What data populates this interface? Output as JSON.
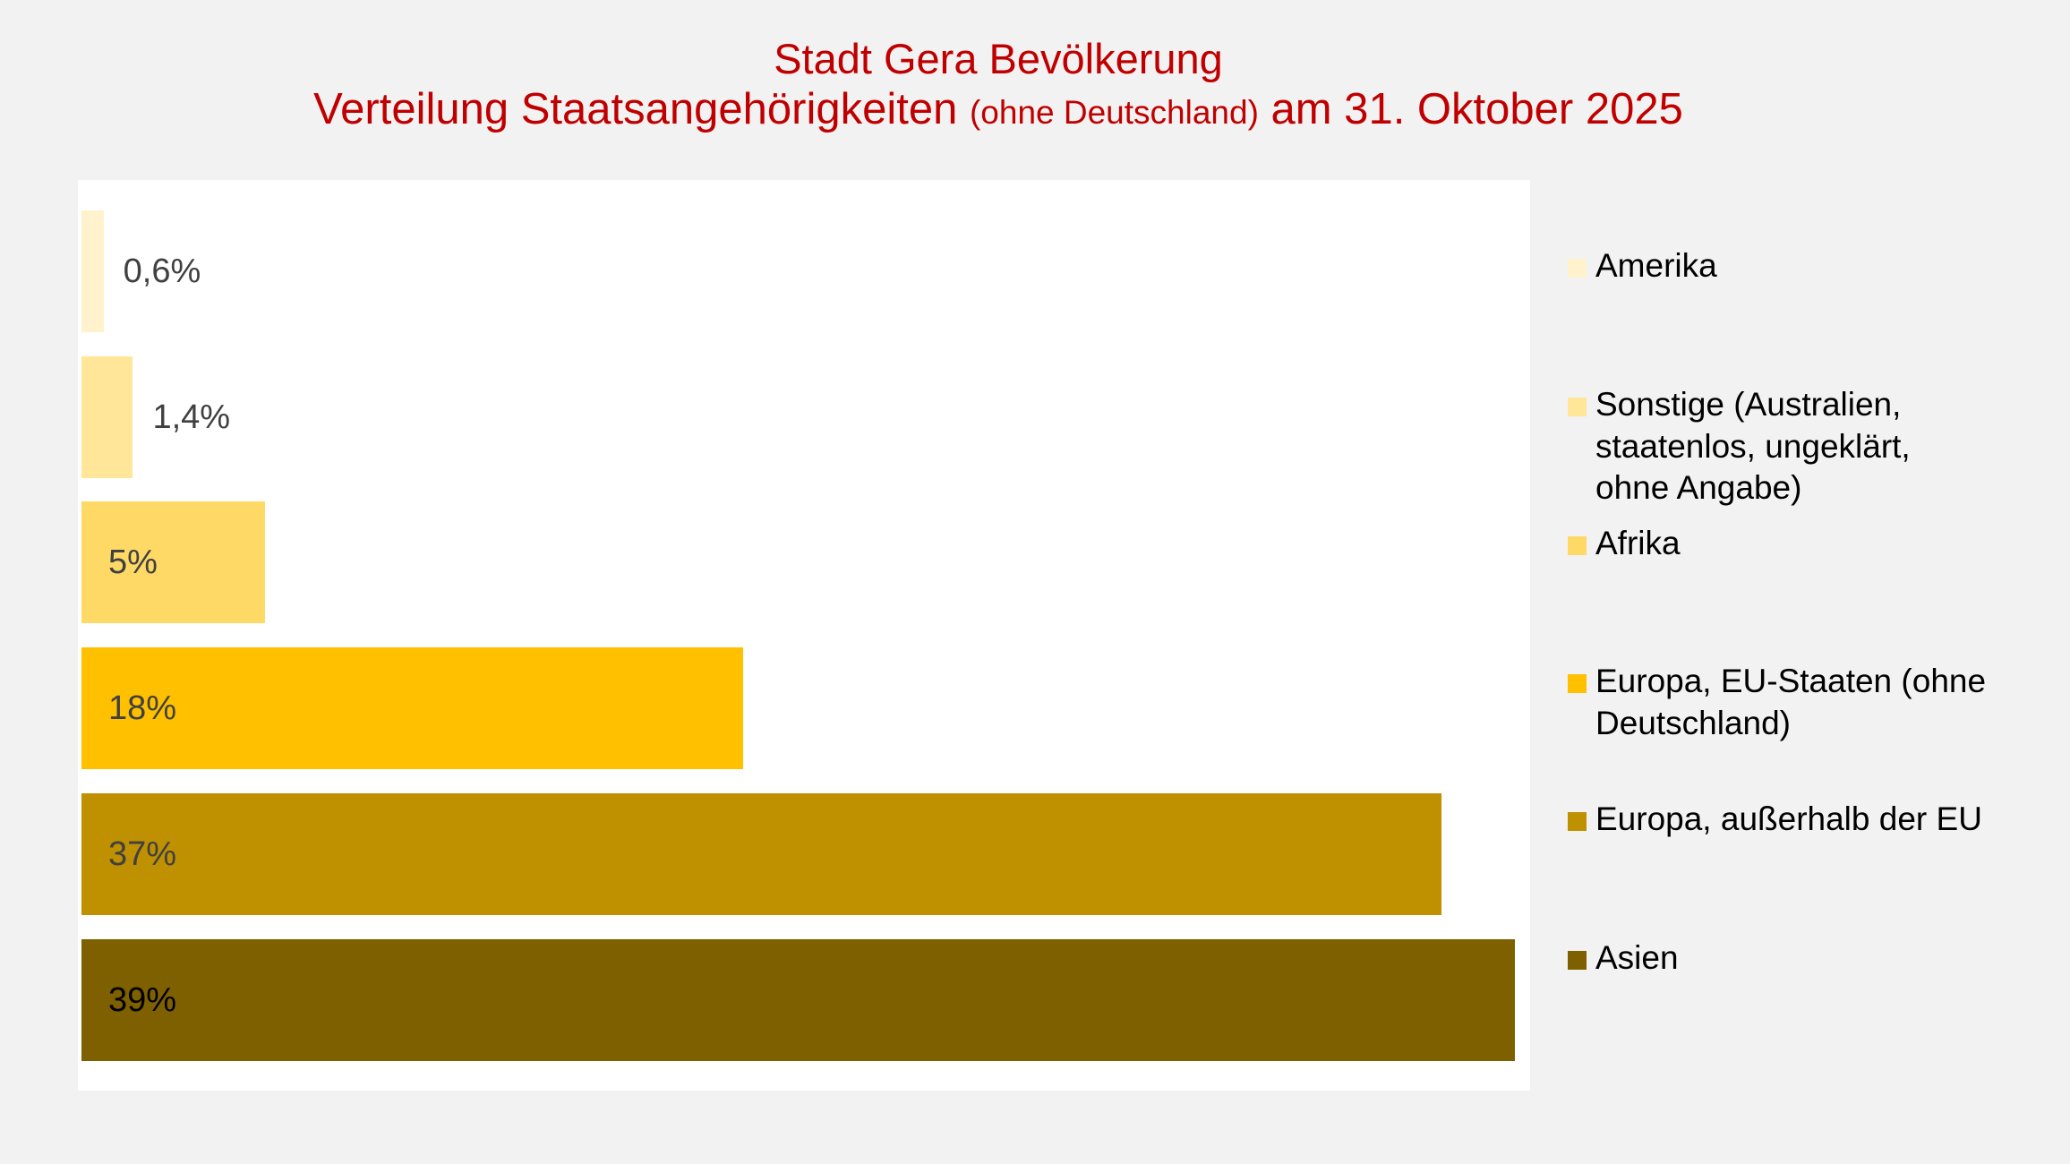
{
  "title": {
    "line1": "Stadt Gera Bevölkerung",
    "line2_part1": "Verteilung Staatsangehörigkeiten ",
    "line2_small": "(ohne Deutschland)",
    "line2_part2": " am 31. Oktober 2025",
    "color": "#C00000"
  },
  "chart_data": {
    "type": "bar",
    "orientation": "horizontal",
    "title": "Stadt Gera Bevölkerung – Verteilung Staatsangehörigkeiten (ohne Deutschland) am 31. Oktober 2025",
    "categories": [
      "Amerika",
      "Sonstige (Australien, staatenlos, ungeklärt, ohne Angabe)",
      "Afrika",
      "Europa, EU-Staaten (ohne Deutschland)",
      "Europa, außerhalb der EU",
      "Asien"
    ],
    "values": [
      0.6,
      1.4,
      5,
      18,
      37,
      39
    ],
    "labels": [
      "0,6%",
      "1,4%",
      "5%",
      "18%",
      "37%",
      "39%"
    ],
    "colors": [
      "#FFF2CC",
      "#FFE699",
      "#FFD966",
      "#FFC000",
      "#BF9000",
      "#7F6000"
    ],
    "unit": "%",
    "xlabel": "",
    "ylabel": "",
    "xlim": [
      0,
      39.5
    ],
    "grid": false,
    "axes_visible": false,
    "legend_position": "right"
  },
  "bars": [
    {
      "label": "0,6%",
      "value": 0.6,
      "color": "#FFF2CC",
      "label_color": "#404040",
      "label_inside": false
    },
    {
      "label": "1,4%",
      "value": 1.4,
      "color": "#FFE699",
      "label_color": "#404040",
      "label_inside": false
    },
    {
      "label": "5%",
      "value": 5,
      "color": "#FFD966",
      "label_color": "#404040",
      "label_inside": true
    },
    {
      "label": "18%",
      "value": 18,
      "color": "#FFC000",
      "label_color": "#404040",
      "label_inside": true
    },
    {
      "label": "37%",
      "value": 37,
      "color": "#BF9000",
      "label_color": "#404040",
      "label_inside": true
    },
    {
      "label": "39%",
      "value": 39,
      "color": "#7F6000",
      "label_color": "#000000",
      "label_inside": true
    }
  ],
  "legend": {
    "items": [
      {
        "label": "Amerika",
        "color": "#FFF2CC"
      },
      {
        "label": "Sonstige (Australien, staatenlos, ungeklärt, ohne Angabe)",
        "color": "#FFE699"
      },
      {
        "label": "Afrika",
        "color": "#FFD966"
      },
      {
        "label": "Europa, EU-Staaten (ohne Deutschland)",
        "color": "#FFC000"
      },
      {
        "label": "Europa, außerhalb der EU",
        "color": "#BF9000"
      },
      {
        "label": "Asien",
        "color": "#7F6000"
      }
    ]
  }
}
